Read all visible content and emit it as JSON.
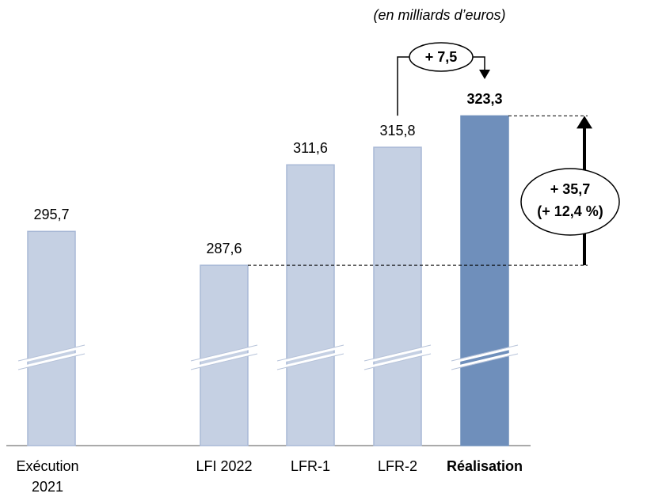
{
  "chart_data": {
    "type": "bar",
    "subtitle": "(en milliards d’euros)",
    "categories": [
      "Exécution 2021",
      "LFI 2022",
      "LFR-1",
      "LFR-2",
      "Réalisation"
    ],
    "values": [
      295.7,
      287.6,
      311.6,
      315.8,
      323.3
    ],
    "value_labels": [
      "295,7",
      "287,6",
      "311,6",
      "315,8",
      "323,3"
    ],
    "colors": [
      "#c5d0e3",
      "#c5d0e3",
      "#c5d0e3",
      "#c5d0e3",
      "#6f8fbb"
    ],
    "ylim": [
      244.5,
      330
    ],
    "annotations": [
      "+ 7,5",
      "+ 35,7",
      "(+ 12,4 %)"
    ]
  }
}
